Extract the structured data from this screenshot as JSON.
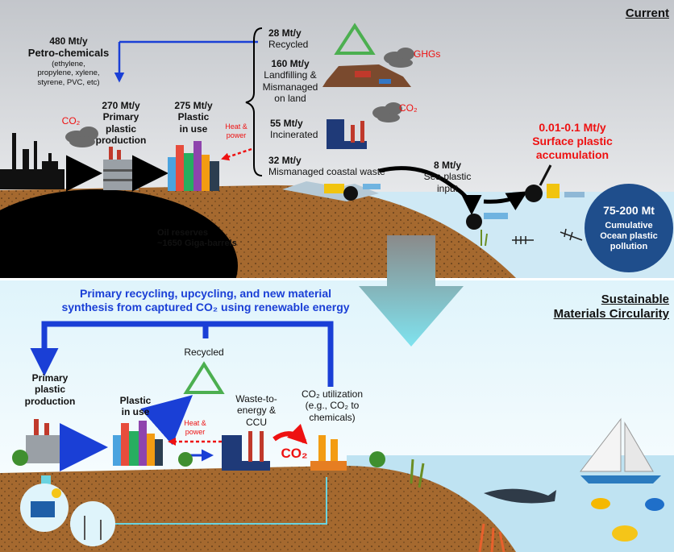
{
  "current": {
    "title": "Current",
    "petrochemicals": {
      "amount": "480 Mt/y",
      "label": "Petro-chemicals",
      "detail": [
        "(ethylene,",
        "propylene, xylene,",
        "styrene, PVC, etc)"
      ]
    },
    "refinery_emission": "CO₂",
    "primary_production": {
      "amount": "270 Mt/y",
      "label": [
        "Primary",
        "plastic",
        "production"
      ]
    },
    "plastic_in_use": {
      "amount": "275 Mt/y",
      "label": [
        "Plastic",
        "in use"
      ]
    },
    "heat_power": [
      "Heat &",
      "power"
    ],
    "fates": [
      {
        "amount": "28 Mt/y",
        "label": [
          "Recycled"
        ]
      },
      {
        "amount": "160 Mt/y",
        "label": [
          "Landfilling &",
          "Mismanaged",
          "on land"
        ]
      },
      {
        "amount": "55 Mt/y",
        "label": [
          "Incinerated"
        ]
      },
      {
        "amount": "32 Mt/y",
        "label": [
          "Mismanaged coastal waste"
        ]
      }
    ],
    "landfill_emission": "GHGs",
    "incineration_emission": "CO₂",
    "sea_input": {
      "amount": "8 Mt/y",
      "label": [
        "Sea plastic",
        "input"
      ]
    },
    "surface_accumulation": {
      "amount": "0.01-0.1 Mt/y",
      "label": [
        "Surface plastic",
        "accumulation"
      ]
    },
    "ocean_pollution": {
      "amount": "75-200 Mt",
      "label": [
        "Cumulative",
        "Ocean plastic",
        "pollution"
      ]
    },
    "oil_reserves": [
      "Oil reserves",
      "~1650 Giga-barrels"
    ]
  },
  "sustainable": {
    "title": [
      "Sustainable",
      "Materials Circularity"
    ],
    "headline": [
      "Primary recycling, upcycling, and new material",
      "synthesis from captured CO₂ using renewable energy"
    ],
    "recycled": "Recycled",
    "primary_production": [
      "Primary",
      "plastic",
      "production"
    ],
    "plastic_in_use": [
      "Plastic",
      "in use"
    ],
    "heat_power": [
      "Heat &",
      "power"
    ],
    "waste_to_energy": [
      "Waste-to-",
      "energy &",
      "CCU"
    ],
    "co2_utilization": [
      "CO₂ utilization",
      "(e.g., CO₂ to",
      "chemicals)"
    ],
    "captured": "CO₂"
  }
}
